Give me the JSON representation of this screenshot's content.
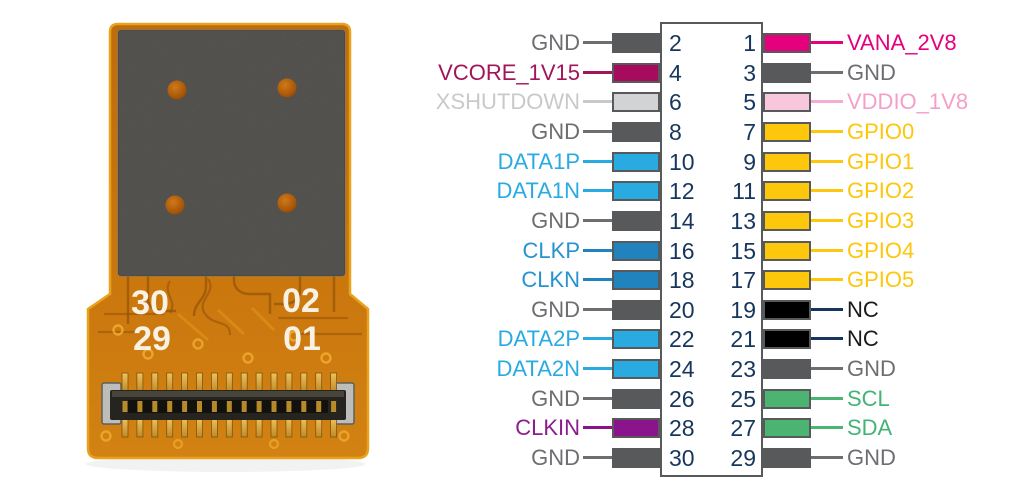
{
  "photo": {
    "silkscreen": {
      "row1_left": "30",
      "row1_right": "02",
      "row2_left": "29",
      "row2_right": "01"
    }
  },
  "pinout": {
    "number_color": "#17365D",
    "box_border_color": "#58595B",
    "palette": {
      "gnd": {
        "text": "#6D6E71",
        "bar": "#58595B",
        "line": "#6D6E71"
      },
      "vcore": {
        "text": "#A21559",
        "bar": "#A60B5E",
        "line": "#A21559"
      },
      "xshutdown": {
        "text": "#C8C9CB",
        "bar": "#D1D3D4",
        "line": "#C8C9CB"
      },
      "data": {
        "text": "#29ABE2",
        "bar": "#29ABE2",
        "line": "#29ABE2"
      },
      "clk": {
        "text": "#2693D2",
        "bar": "#2183BE",
        "line": "#2183BE"
      },
      "clkin": {
        "text": "#8C1D8C",
        "bar": "#8A148C",
        "line": "#8A148C"
      },
      "vana": {
        "text": "#E5007D",
        "bar": "#E5007D",
        "line": "#E5007D"
      },
      "vddio": {
        "text": "#F49FC8",
        "bar": "#F9C7DC",
        "line": "#F4ACD0"
      },
      "gpio": {
        "text": "#FDC70C",
        "bar": "#FDC70C",
        "line": "#FDC70C"
      },
      "nc": {
        "text": "#1A1A1A",
        "bar": "#000000",
        "line": "#17365D"
      },
      "i2c": {
        "text": "#45B377",
        "bar": "#4CB472",
        "line": "#4CB472"
      }
    },
    "rows": [
      {
        "l": {
          "pin": "2",
          "label": "GND",
          "type": "gnd"
        },
        "r": {
          "pin": "1",
          "label": "VANA_2V8",
          "type": "vana"
        }
      },
      {
        "l": {
          "pin": "4",
          "label": "VCORE_1V15",
          "type": "vcore"
        },
        "r": {
          "pin": "3",
          "label": "GND",
          "type": "gnd"
        }
      },
      {
        "l": {
          "pin": "6",
          "label": "XSHUTDOWN",
          "type": "xshutdown"
        },
        "r": {
          "pin": "5",
          "label": "VDDIO_1V8",
          "type": "vddio"
        }
      },
      {
        "l": {
          "pin": "8",
          "label": "GND",
          "type": "gnd"
        },
        "r": {
          "pin": "7",
          "label": "GPIO0",
          "type": "gpio"
        }
      },
      {
        "l": {
          "pin": "10",
          "label": "DATA1P",
          "type": "data"
        },
        "r": {
          "pin": "9",
          "label": "GPIO1",
          "type": "gpio"
        }
      },
      {
        "l": {
          "pin": "12",
          "label": "DATA1N",
          "type": "data"
        },
        "r": {
          "pin": "11",
          "label": "GPIO2",
          "type": "gpio"
        }
      },
      {
        "l": {
          "pin": "14",
          "label": "GND",
          "type": "gnd"
        },
        "r": {
          "pin": "13",
          "label": "GPIO3",
          "type": "gpio"
        }
      },
      {
        "l": {
          "pin": "16",
          "label": "CLKP",
          "type": "clk"
        },
        "r": {
          "pin": "15",
          "label": "GPIO4",
          "type": "gpio"
        }
      },
      {
        "l": {
          "pin": "18",
          "label": "CLKN",
          "type": "clk"
        },
        "r": {
          "pin": "17",
          "label": "GPIO5",
          "type": "gpio"
        }
      },
      {
        "l": {
          "pin": "20",
          "label": "GND",
          "type": "gnd"
        },
        "r": {
          "pin": "19",
          "label": "NC",
          "type": "nc"
        }
      },
      {
        "l": {
          "pin": "22",
          "label": "DATA2P",
          "type": "data"
        },
        "r": {
          "pin": "21",
          "label": "NC",
          "type": "nc"
        }
      },
      {
        "l": {
          "pin": "24",
          "label": "DATA2N",
          "type": "data"
        },
        "r": {
          "pin": "23",
          "label": "GND",
          "type": "gnd"
        }
      },
      {
        "l": {
          "pin": "26",
          "label": "GND",
          "type": "gnd"
        },
        "r": {
          "pin": "25",
          "label": "SCL",
          "type": "i2c"
        }
      },
      {
        "l": {
          "pin": "28",
          "label": "CLKIN",
          "type": "clkin"
        },
        "r": {
          "pin": "27",
          "label": "SDA",
          "type": "i2c"
        }
      },
      {
        "l": {
          "pin": "30",
          "label": "GND",
          "type": "gnd"
        },
        "r": {
          "pin": "29",
          "label": "GND",
          "type": "gnd"
        }
      }
    ]
  }
}
